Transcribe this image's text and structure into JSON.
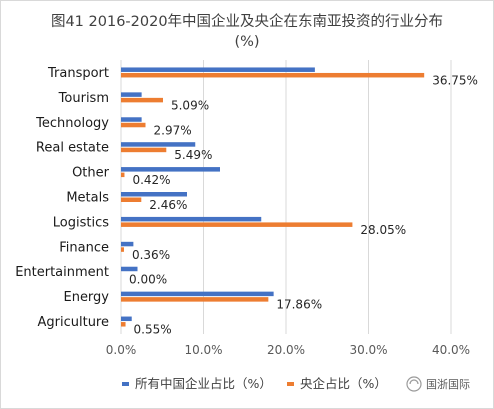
{
  "chart_data": {
    "type": "bar",
    "orientation": "horizontal",
    "title": "图41 2016-2020年中国企业及央企在东南亚投资的行业分布",
    "subtitle": "(%)",
    "categories": [
      "Transport",
      "Tourism",
      "Technology",
      "Real estate",
      "Other",
      "Metals",
      "Logistics",
      "Finance",
      "Entertainment",
      "Energy",
      "Agriculture"
    ],
    "series": [
      {
        "name": "所有中国企业占比（%）",
        "color": "#4472C4",
        "values": [
          23.5,
          2.5,
          2.5,
          9.0,
          12.0,
          8.0,
          17.0,
          1.5,
          2.0,
          18.5,
          1.3
        ]
      },
      {
        "name": "央企占比（%）",
        "color": "#ED7D31",
        "values": [
          36.75,
          5.09,
          2.97,
          5.49,
          0.42,
          2.46,
          28.05,
          0.36,
          0.0,
          17.86,
          0.55
        ]
      }
    ],
    "data_labels": [
      "36.75%",
      "5.09%",
      "2.97%",
      "5.49%",
      "0.42%",
      "2.46%",
      "28.05%",
      "0.36%",
      "0.00%",
      "17.86%",
      "0.55%"
    ],
    "xlim": [
      0,
      40
    ],
    "xticks": [
      "0.0%",
      "10.0%",
      "20.0%",
      "30.0%",
      "40.0%"
    ],
    "grid": "vertical",
    "legend": "bottom",
    "watermark": "国浙国际"
  }
}
